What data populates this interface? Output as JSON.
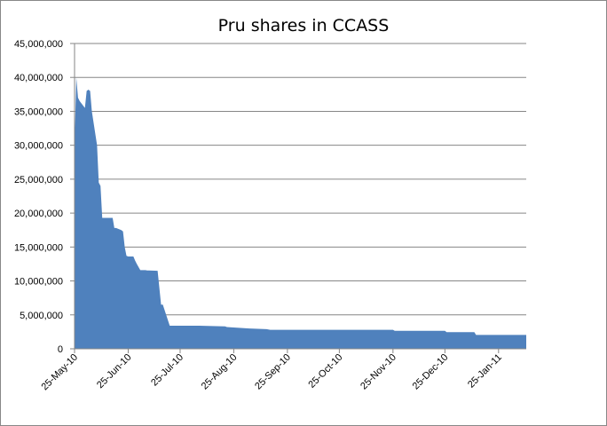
{
  "chart_data": {
    "type": "area",
    "title": "Pru shares in CCASS",
    "xlabel": "",
    "ylabel": "",
    "ylim": [
      0,
      45000000
    ],
    "yticks": [
      "0",
      "5,000,000",
      "10,000,000",
      "15,000,000",
      "20,000,000",
      "25,000,000",
      "30,000,000",
      "35,000,000",
      "40,000,000",
      "45,000,000"
    ],
    "xlim": [
      "2010-05-25",
      "2011-02-10"
    ],
    "xticks": [
      "25-May-10",
      "25-Jun-10",
      "25-Jul-10",
      "25-Aug-10",
      "25-Sep-10",
      "25-Oct-10",
      "25-Nov-10",
      "25-Dec-10",
      "25-Jan-11"
    ],
    "grid": true,
    "legend": "none",
    "color": "#4f81bd",
    "series": [
      {
        "x": [
          "2010-05-25",
          "2010-05-26",
          "2010-05-27",
          "2010-05-28",
          "2010-05-31",
          "2010-06-01",
          "2010-06-02",
          "2010-06-03",
          "2010-06-04",
          "2010-06-07",
          "2010-06-08",
          "2010-06-09",
          "2010-06-10",
          "2010-06-11",
          "2010-06-14",
          "2010-06-16",
          "2010-06-17",
          "2010-06-18",
          "2010-06-21",
          "2010-06-22",
          "2010-06-23",
          "2010-06-24",
          "2010-06-25",
          "2010-06-28",
          "2010-06-29",
          "2010-06-30",
          "2010-07-02",
          "2010-07-05",
          "2010-07-06",
          "2010-07-07",
          "2010-07-12",
          "2010-07-13",
          "2010-07-14",
          "2010-07-15",
          "2010-07-19",
          "2010-07-20",
          "2010-07-21",
          "2010-07-22",
          "2010-08-05",
          "2010-08-20",
          "2010-08-21",
          "2010-09-03",
          "2010-09-13",
          "2010-09-15",
          "2010-10-15",
          "2010-11-25",
          "2010-11-26",
          "2010-12-25",
          "2010-12-26",
          "2011-01-11",
          "2011-01-12",
          "2011-02-10"
        ],
        "values": [
          30000000,
          40000000,
          37000000,
          36500000,
          35500000,
          38000000,
          38200000,
          38000000,
          35000000,
          30000000,
          24500000,
          24000000,
          19300000,
          19300000,
          19300000,
          19300000,
          17800000,
          17800000,
          17500000,
          17300000,
          15000000,
          13700000,
          13600000,
          13600000,
          13000000,
          12500000,
          11600000,
          11600000,
          11550000,
          11550000,
          11500000,
          9000000,
          6500000,
          6500000,
          3400000,
          3400000,
          3400000,
          3400000,
          3400000,
          3300000,
          3200000,
          3000000,
          2900000,
          2800000,
          2800000,
          2800000,
          2650000,
          2650000,
          2450000,
          2450000,
          2050000,
          2050000
        ]
      }
    ]
  }
}
